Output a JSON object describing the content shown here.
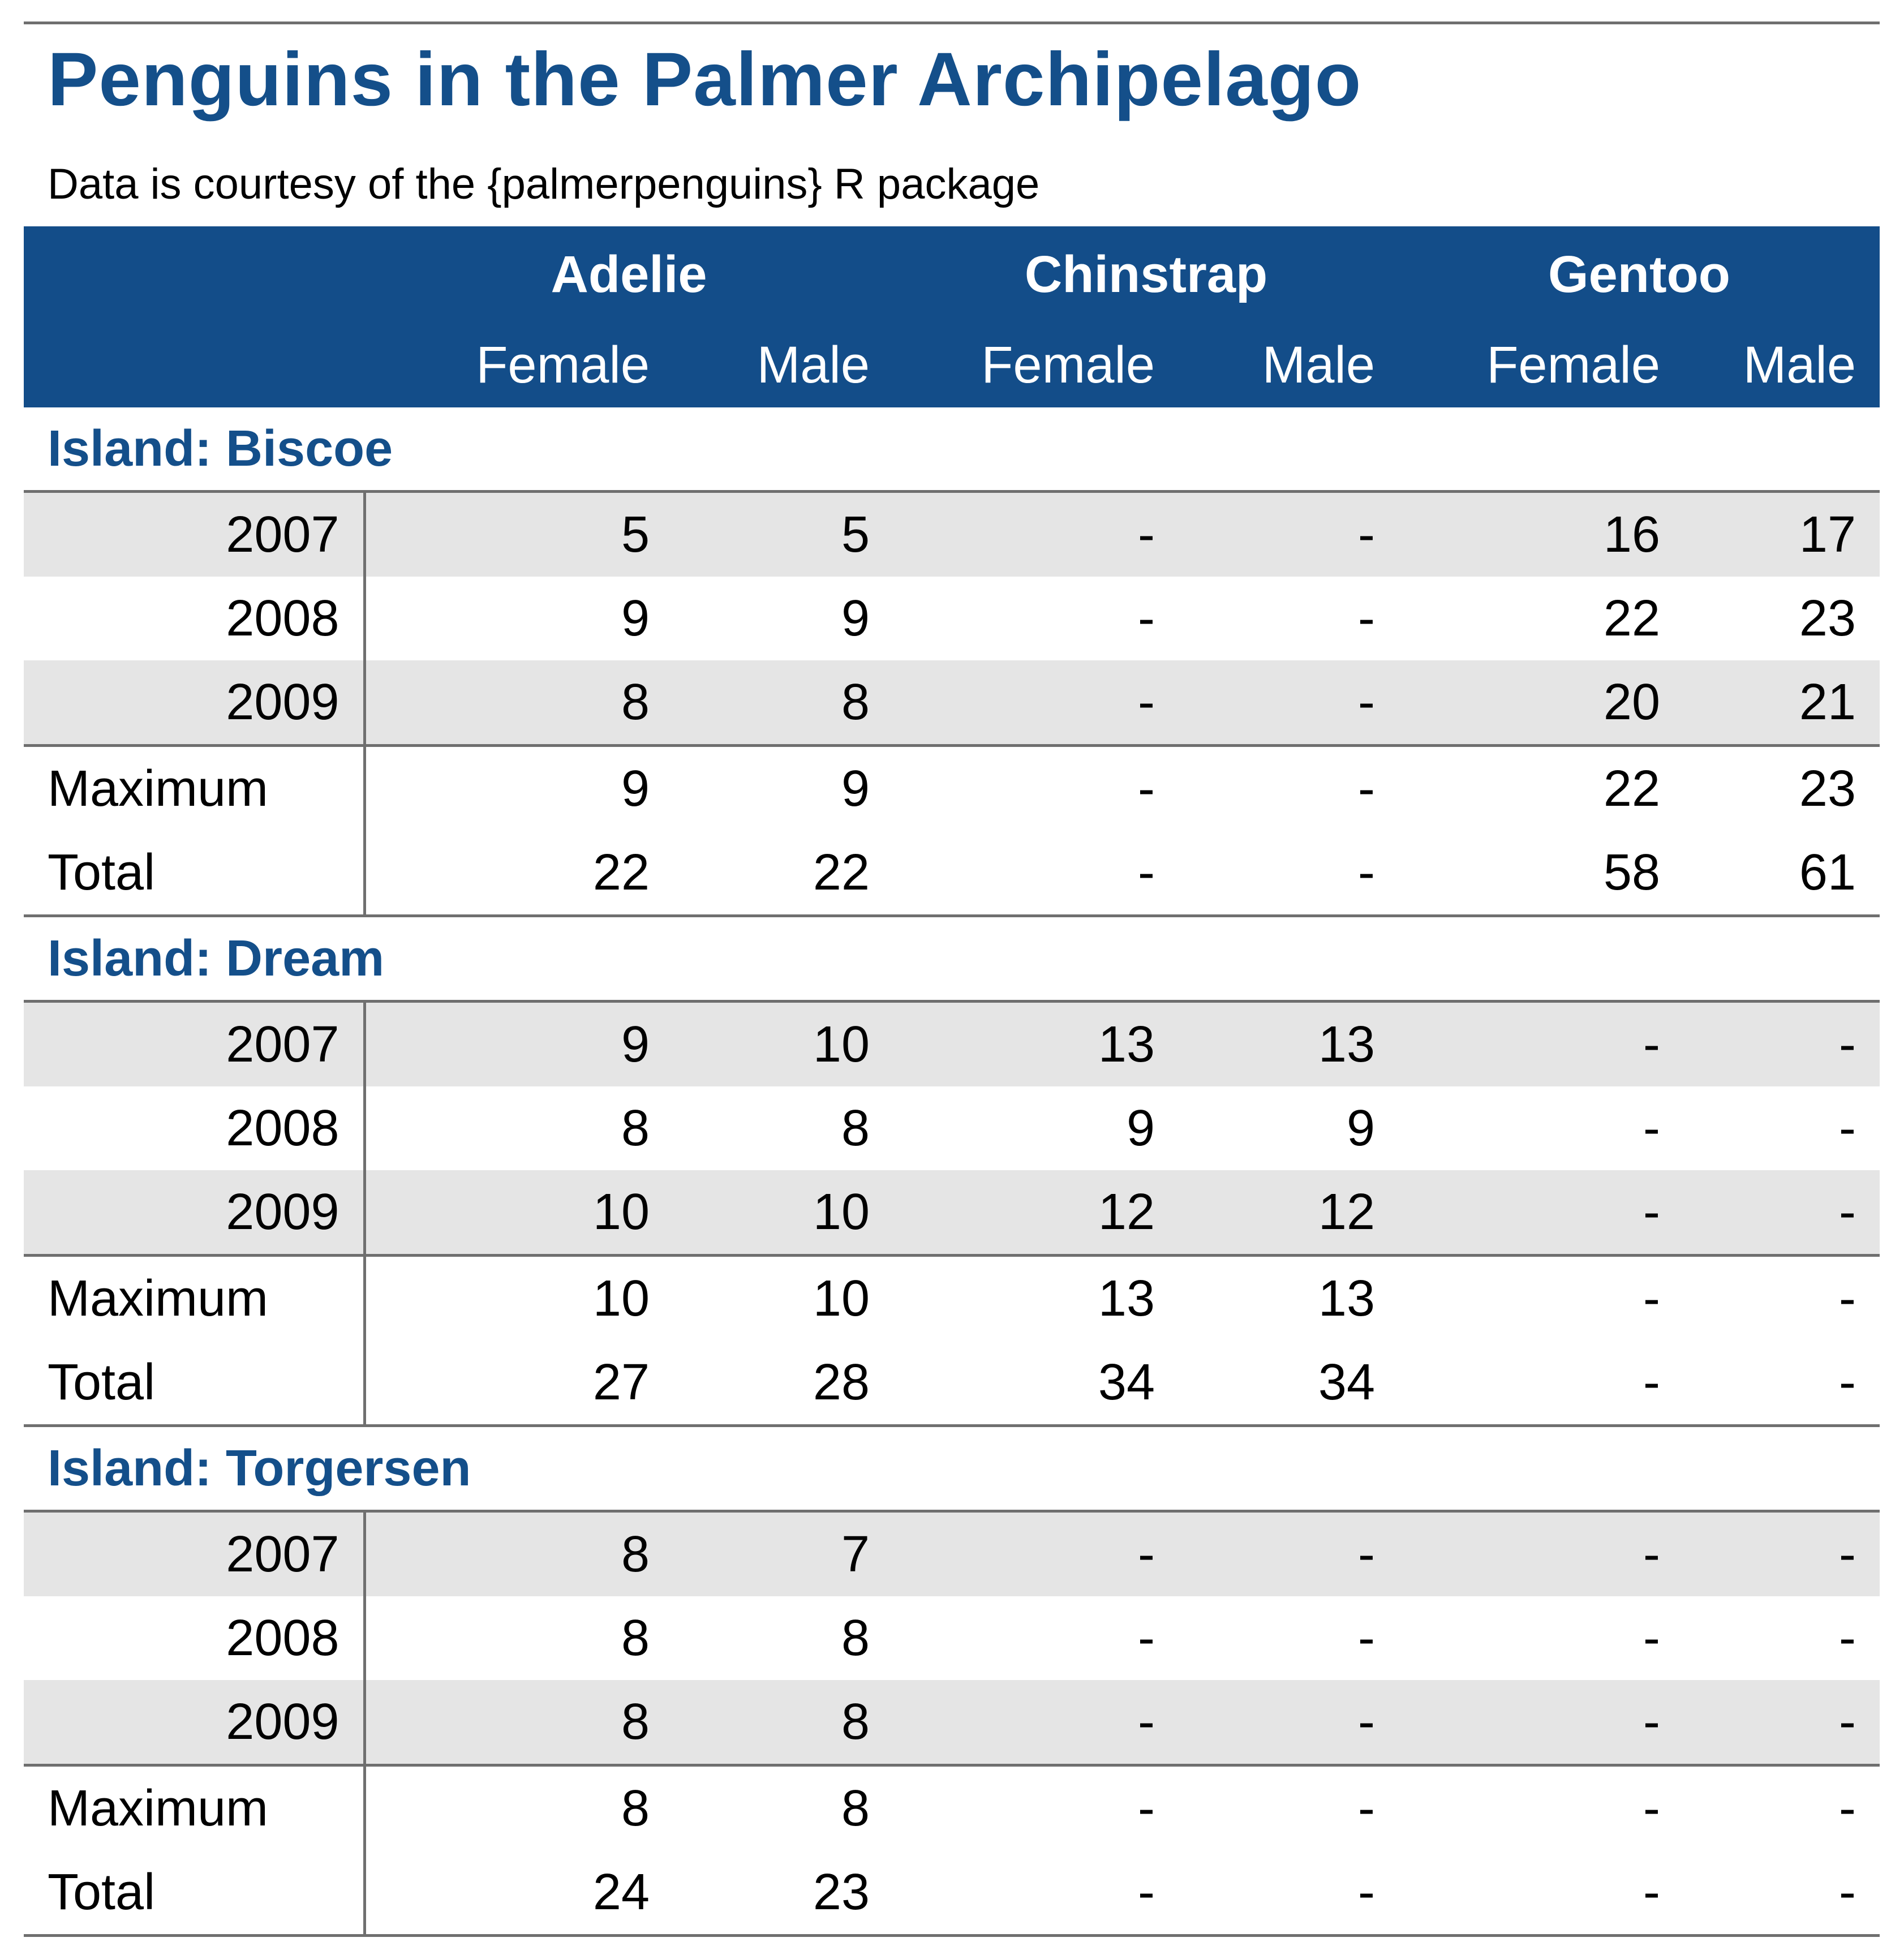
{
  "title": "Penguins in the Palmer Archipelago",
  "subtitle": "Data is courtesy of the {palmerpenguins} R package",
  "columns": {
    "species": [
      "Adelie",
      "Chinstrap",
      "Gentoo"
    ],
    "sexes": [
      "Female",
      "Male",
      "Female",
      "Male",
      "Female",
      "Male"
    ]
  },
  "groups": [
    {
      "label": "Island: Biscoe",
      "rows": [
        {
          "year": "2007",
          "values": [
            "5",
            "5",
            "-",
            "-",
            "16",
            "17"
          ]
        },
        {
          "year": "2008",
          "values": [
            "9",
            "9",
            "-",
            "-",
            "22",
            "23"
          ]
        },
        {
          "year": "2009",
          "values": [
            "8",
            "8",
            "-",
            "-",
            "20",
            "21"
          ]
        }
      ],
      "summary": [
        {
          "label": "Maximum",
          "values": [
            "9",
            "9",
            "-",
            "-",
            "22",
            "23"
          ]
        },
        {
          "label": "Total",
          "values": [
            "22",
            "22",
            "-",
            "-",
            "58",
            "61"
          ]
        }
      ]
    },
    {
      "label": "Island: Dream",
      "rows": [
        {
          "year": "2007",
          "values": [
            "9",
            "10",
            "13",
            "13",
            "-",
            "-"
          ]
        },
        {
          "year": "2008",
          "values": [
            "8",
            "8",
            "9",
            "9",
            "-",
            "-"
          ]
        },
        {
          "year": "2009",
          "values": [
            "10",
            "10",
            "12",
            "12",
            "-",
            "-"
          ]
        }
      ],
      "summary": [
        {
          "label": "Maximum",
          "values": [
            "10",
            "10",
            "13",
            "13",
            "-",
            "-"
          ]
        },
        {
          "label": "Total",
          "values": [
            "27",
            "28",
            "34",
            "34",
            "-",
            "-"
          ]
        }
      ]
    },
    {
      "label": "Island: Torgersen",
      "rows": [
        {
          "year": "2007",
          "values": [
            "8",
            "7",
            "-",
            "-",
            "-",
            "-"
          ]
        },
        {
          "year": "2008",
          "values": [
            "8",
            "8",
            "-",
            "-",
            "-",
            "-"
          ]
        },
        {
          "year": "2009",
          "values": [
            "8",
            "8",
            "-",
            "-",
            "-",
            "-"
          ]
        }
      ],
      "summary": [
        {
          "label": "Maximum",
          "values": [
            "8",
            "8",
            "-",
            "-",
            "-",
            "-"
          ]
        },
        {
          "label": "Total",
          "values": [
            "24",
            "23",
            "-",
            "-",
            "-",
            "-"
          ]
        }
      ]
    }
  ],
  "colors": {
    "header_bg": "#134d89",
    "accent_text": "#144f8a",
    "stripe": "#e5e5e5",
    "rule": "#6f6f6f"
  }
}
